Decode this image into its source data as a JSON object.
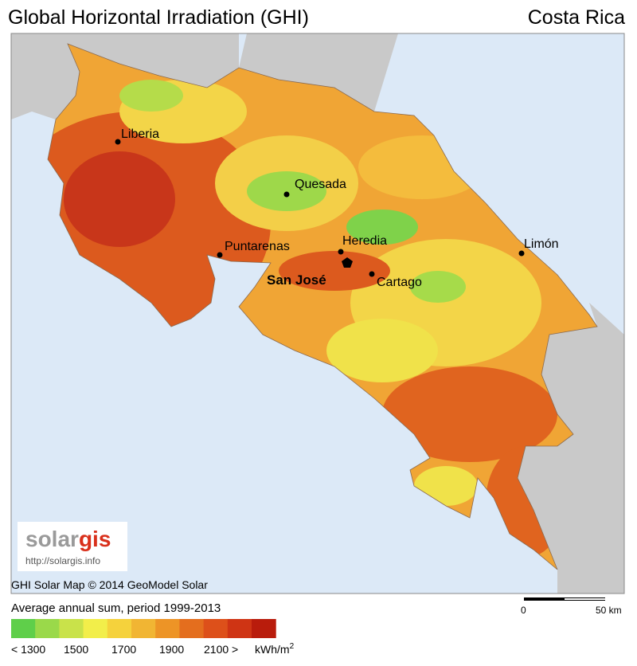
{
  "header": {
    "title": "Global Horizontal Irradiation (GHI)",
    "country": "Costa Rica"
  },
  "map": {
    "cities": [
      "Liberia",
      "Quesada",
      "Puntarenas",
      "Heredia",
      "Cartago",
      "Limón"
    ],
    "capital": "San José"
  },
  "logo": {
    "brand_start": "solar",
    "brand_end": "gis",
    "url": "http://solargis.info"
  },
  "copyright": "GHI Solar Map © 2014 GeoModel Solar",
  "legend": {
    "title": "Average annual sum, period 1999-2013",
    "colors": [
      "#5fcf4a",
      "#9ad94a",
      "#c9e24a",
      "#f2ee4a",
      "#f5d23c",
      "#f1b533",
      "#ed9426",
      "#e46e1e",
      "#dd501a",
      "#cf3414",
      "#b91c0c"
    ],
    "labels": [
      "< 1300",
      "1500",
      "1700",
      "1900",
      "2100 >"
    ],
    "unit": "kWh/m",
    "unit_exponent": "2"
  },
  "scale_bar": {
    "start": "0",
    "end": "50 km"
  }
}
